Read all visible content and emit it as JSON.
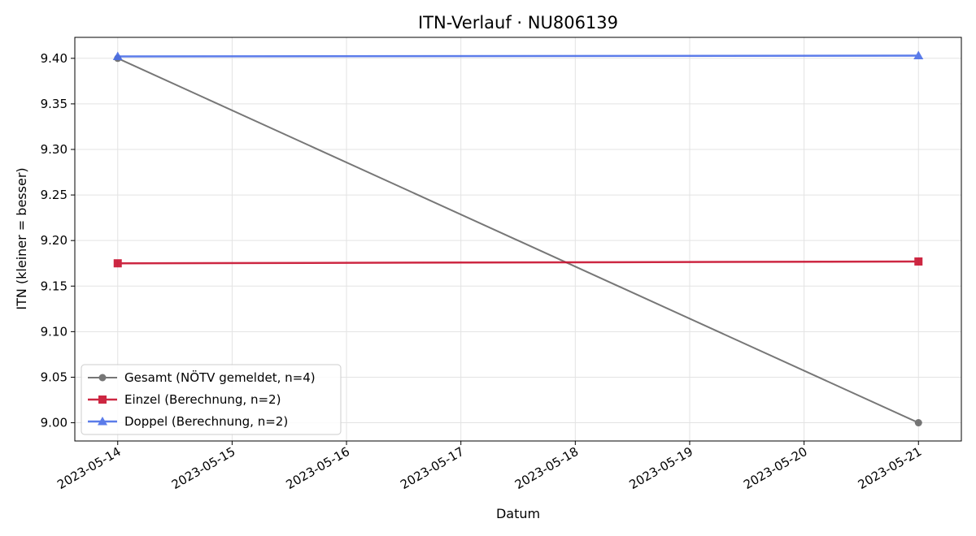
{
  "chart_data": {
    "type": "line",
    "title": "ITN-Verlauf · NU806139",
    "xlabel": "Datum",
    "ylabel": "ITN  (kleiner = besser)",
    "x_ticks": [
      "2023-05-14",
      "2023-05-15",
      "2023-05-16",
      "2023-05-17",
      "2023-05-18",
      "2023-05-19",
      "2023-05-20",
      "2023-05-21"
    ],
    "y_ticks": [
      "9.00",
      "9.05",
      "9.10",
      "9.15",
      "9.20",
      "9.25",
      "9.30",
      "9.35",
      "9.40"
    ],
    "ylim": [
      8.98,
      9.423
    ],
    "xlim": [
      "2023-05-13T15:00",
      "2023-05-21T09:00"
    ],
    "grid": true,
    "legend_position": "lower-left",
    "series": [
      {
        "name": "Gesamt (NÖTV gemeldet, n=4)",
        "color": "#555555",
        "marker": "circle",
        "x": [
          "2023-05-14",
          "2023-05-21"
        ],
        "y": [
          9.4,
          9.0
        ]
      },
      {
        "name": "Einzel (Berechnung, n=2)",
        "color": "#c8102e",
        "marker": "square",
        "x": [
          "2023-05-14",
          "2023-05-21"
        ],
        "y": [
          9.175,
          9.177
        ]
      },
      {
        "name": "Doppel (Berechnung, n=2)",
        "color": "#4a6ee8",
        "marker": "triangle",
        "x": [
          "2023-05-14",
          "2023-05-21"
        ],
        "y": [
          9.402,
          9.403
        ]
      }
    ]
  }
}
